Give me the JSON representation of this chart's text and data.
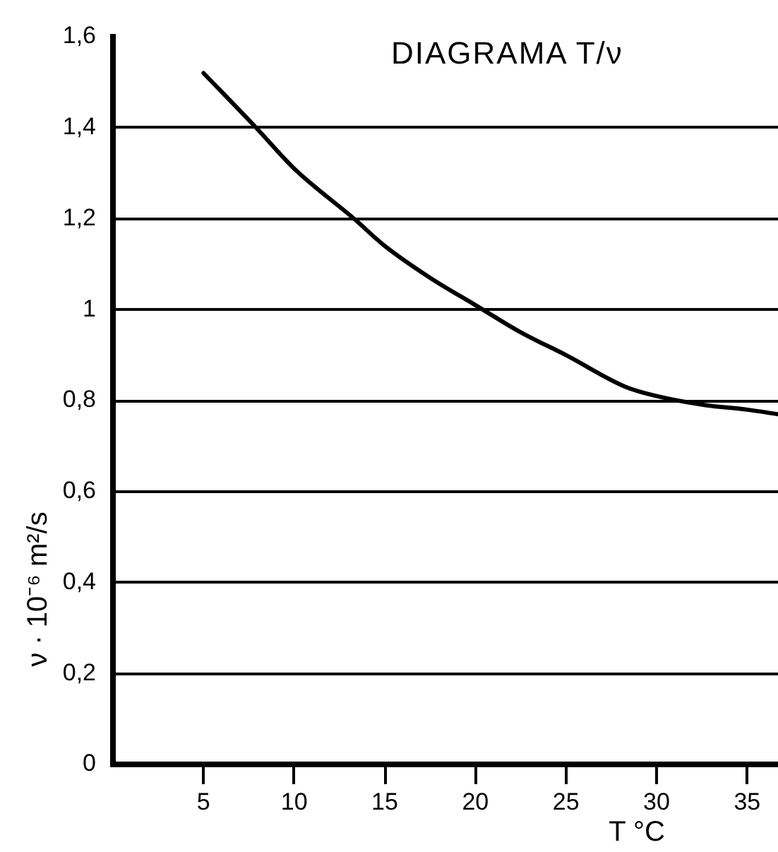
{
  "chart_data": {
    "type": "line",
    "title": "DIAGRAMA T/ν",
    "xlabel": "T °C",
    "ylabel": "ν · 10⁻⁶ m²/s",
    "x": [
      5,
      7.9,
      10,
      13.3,
      15,
      17.5,
      20,
      22.5,
      25,
      28.3,
      30,
      32.7,
      35,
      36.7
    ],
    "series": [
      {
        "color": "#000000",
        "values": [
          1.52,
          1.4,
          1.31,
          1.2,
          1.14,
          1.07,
          1.01,
          0.95,
          0.9,
          0.83,
          0.81,
          0.79,
          0.78,
          0.77
        ]
      }
    ],
    "xlim": [
      0,
      36.7
    ],
    "ylim": [
      0,
      1.6
    ],
    "xticks": [
      5,
      10,
      15,
      20,
      25,
      30,
      35
    ],
    "yticks": [
      0,
      {
        "value": 0.2,
        "label": "0,2"
      },
      {
        "value": 0.4,
        "label": "0,4"
      },
      {
        "value": 0.6,
        "label": "0,6"
      },
      {
        "value": 0.8,
        "label": "0,8"
      },
      1,
      {
        "value": 1.2,
        "label": "1,2"
      },
      {
        "value": 1.4,
        "label": "1,4"
      },
      {
        "value": 1.6,
        "label": "1,6"
      }
    ],
    "grid": "y",
    "marker": "none",
    "line_style": "solid"
  }
}
